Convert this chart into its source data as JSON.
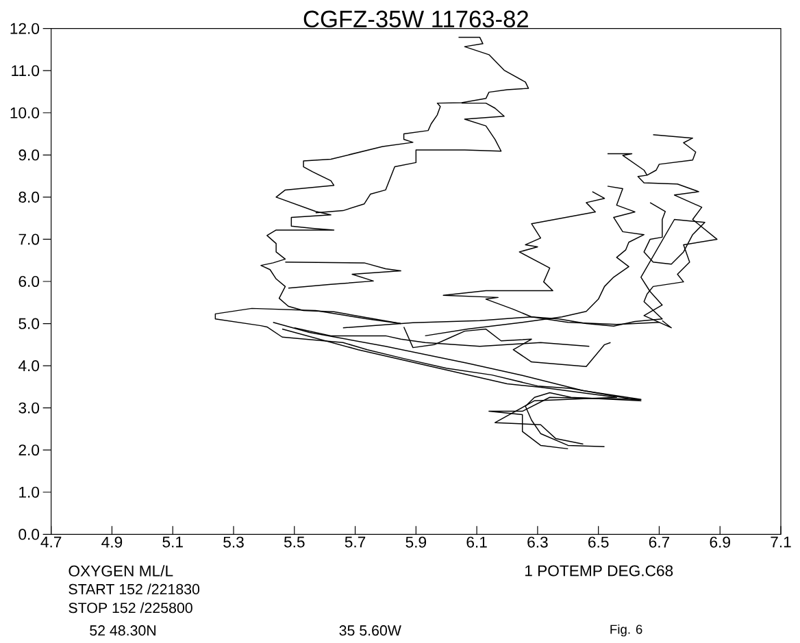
{
  "chart_data": {
    "type": "line",
    "title": "CGFZ-35W 11763-82",
    "xlabel": "OXYGEN ML/L",
    "annotations": [
      "1 POTEMP DEG.C68",
      "START 152 /221830",
      "STOP 152 /225800",
      "52 48.30N",
      "35 5.60W",
      "Fig. 6"
    ],
    "xlim": [
      4.7,
      7.1
    ],
    "ylim": [
      0,
      12
    ],
    "xticks": [
      4.7,
      4.9,
      5.1,
      5.3,
      5.5,
      5.7,
      5.9,
      6.1,
      6.3,
      6.5,
      6.7,
      6.9,
      7.1
    ],
    "yticks": [
      {
        "value": 0,
        "label": "0.0"
      },
      {
        "value": 1,
        "label": "1.0"
      },
      {
        "value": 2,
        "label": "2.0"
      },
      {
        "value": 3,
        "label": "3.0"
      },
      {
        "value": 4,
        "label": "4.0"
      },
      {
        "value": 5,
        "label": "5.0"
      },
      {
        "value": 6,
        "label": "6.0"
      },
      {
        "value": 7,
        "label": "7.0"
      },
      {
        "value": 8,
        "label": "8.0"
      },
      {
        "value": 9,
        "label": "9.0"
      },
      {
        "value": 10,
        "label": "10.0"
      },
      {
        "value": 11,
        "label": "11.0"
      },
      {
        "value": 12,
        "label": "12.0"
      }
    ],
    "line_style": "solid",
    "series": [
      {
        "color": "#000000",
        "x": [
          6.04,
          6.11,
          6.12,
          6.06,
          6.14,
          6.19,
          6.26,
          6.27,
          6.2,
          6.14,
          6.13,
          6.05,
          5.97,
          5.98,
          5.97,
          5.95,
          5.94,
          5.86,
          5.86,
          5.89,
          5.79,
          5.62,
          5.53,
          5.53,
          5.56,
          5.62,
          5.63,
          5.47,
          5.44,
          5.57,
          5.62,
          5.49,
          5.49,
          5.56,
          5.63,
          5.44,
          5.41,
          5.44,
          5.44,
          5.47,
          5.43,
          5.39,
          5.42,
          5.44,
          5.47,
          5.45,
          5.48,
          5.53,
          5.63,
          5.85
        ],
        "values": [
          11.79,
          11.79,
          11.64,
          11.57,
          11.38,
          11.01,
          10.73,
          10.58,
          10.55,
          10.49,
          10.34,
          10.24,
          10.23,
          10.15,
          9.95,
          9.74,
          9.58,
          9.5,
          9.37,
          9.3,
          9.2,
          8.9,
          8.86,
          8.72,
          8.6,
          8.39,
          8.28,
          8.17,
          8.0,
          7.66,
          7.58,
          7.52,
          7.31,
          7.26,
          7.22,
          7.22,
          7.09,
          6.9,
          6.7,
          6.53,
          6.44,
          6.38,
          6.28,
          6.06,
          5.88,
          5.6,
          5.41,
          5.31,
          5.28,
          5.0
        ]
      },
      {
        "color": "#000000",
        "x": [
          5.85,
          5.74,
          5.57,
          5.36,
          5.24,
          5.24,
          5.39,
          5.41,
          5.46,
          5.66,
          5.74,
          5.86,
          6.0,
          6.15,
          6.3,
          6.41,
          6.64,
          6.41,
          6.34,
          6.29,
          6.26,
          6.28,
          6.31,
          6.4,
          6.52
        ],
        "values": [
          5.0,
          5.11,
          5.31,
          5.36,
          5.23,
          5.11,
          4.95,
          4.92,
          4.68,
          4.55,
          4.38,
          4.17,
          3.94,
          3.78,
          3.52,
          3.46,
          3.17,
          3.25,
          3.36,
          3.25,
          3.04,
          2.71,
          2.39,
          2.11,
          2.08
        ]
      },
      {
        "color": "#000000",
        "x": [
          5.43,
          5.55,
          5.8,
          6.07,
          6.25,
          6.45,
          6.64,
          6.34,
          6.25,
          6.14,
          6.25,
          6.25,
          6.31,
          6.4
        ],
        "values": [
          5.03,
          4.79,
          4.46,
          4.06,
          3.77,
          3.41,
          3.2,
          3.25,
          2.92,
          2.92,
          2.84,
          2.44,
          2.11,
          2.03
        ]
      },
      {
        "color": "#000000",
        "x": [
          5.46,
          5.71,
          6.0,
          6.2,
          6.31,
          6.56,
          6.29,
          6.22,
          6.16,
          6.31,
          6.36,
          6.45
        ],
        "values": [
          4.87,
          4.38,
          3.9,
          3.57,
          3.49,
          3.25,
          3.17,
          2.89,
          2.65,
          2.6,
          2.27,
          2.14
        ]
      },
      {
        "color": "#000000",
        "x": [
          6.05,
          6.13,
          6.16,
          6.19,
          6.06,
          6.13,
          6.16,
          6.18,
          6.06,
          5.9,
          5.9,
          5.83,
          5.8,
          5.75,
          5.73,
          5.66,
          5.57
        ],
        "values": [
          10.23,
          10.23,
          10.11,
          9.92,
          9.85,
          9.69,
          9.37,
          9.09,
          9.12,
          9.12,
          8.82,
          8.72,
          8.17,
          8.07,
          7.84,
          7.68,
          7.63
        ]
      },
      {
        "color": "#000000",
        "x": [
          5.47,
          5.73,
          5.8,
          5.85,
          5.69,
          5.76,
          5.62,
          5.48
        ],
        "values": [
          6.46,
          6.44,
          6.3,
          6.25,
          6.17,
          6.01,
          5.93,
          5.84
        ]
      },
      {
        "color": "#000000",
        "x": [
          6.68,
          6.81,
          6.78,
          6.82,
          6.81,
          6.7,
          6.69,
          6.66,
          6.63,
          6.65,
          6.76,
          6.83,
          6.75,
          6.84,
          6.81,
          6.89,
          6.78,
          6.8,
          6.76,
          6.78,
          6.68,
          6.66,
          6.65,
          6.71,
          6.62,
          6.55,
          6.46,
          6.37,
          6.28,
          6.11,
          5.89,
          5.66
        ],
        "values": [
          9.48,
          9.4,
          9.29,
          9.07,
          8.88,
          8.78,
          8.64,
          8.52,
          8.49,
          8.34,
          8.31,
          8.13,
          8.05,
          7.76,
          7.47,
          7.0,
          6.87,
          6.46,
          6.17,
          5.99,
          5.88,
          5.7,
          5.52,
          5.11,
          5.05,
          4.94,
          5.0,
          5.11,
          5.16,
          5.07,
          5.02,
          4.9
        ]
      },
      {
        "color": "#000000",
        "x": [
          6.53,
          6.61,
          6.58,
          6.65,
          6.66
        ],
        "values": [
          9.03,
          9.03,
          8.99,
          8.64,
          8.52
        ]
      },
      {
        "color": "#000000",
        "x": [
          6.48,
          6.52,
          6.46,
          6.49,
          6.28,
          6.31,
          6.26,
          6.3,
          6.24,
          6.34,
          6.32,
          6.35,
          6.21,
          6.13,
          5.99,
          6.17,
          6.13,
          6.22,
          6.28,
          6.4,
          6.56,
          6.7
        ],
        "values": [
          8.13,
          7.97,
          7.87,
          7.65,
          7.37,
          7.03,
          6.87,
          6.82,
          6.7,
          6.32,
          5.99,
          5.78,
          5.78,
          5.78,
          5.67,
          5.62,
          5.58,
          5.34,
          5.16,
          5.03,
          4.98,
          5.03
        ]
      },
      {
        "color": "#000000",
        "x": [
          6.53,
          6.58,
          6.56,
          6.62,
          6.55,
          6.58,
          6.65,
          6.6,
          6.59,
          6.56,
          6.6,
          6.55,
          6.52,
          6.5,
          6.46,
          6.38,
          6.25,
          6.07,
          5.93
        ],
        "values": [
          8.26,
          8.2,
          7.81,
          7.65,
          7.52,
          7.18,
          7.11,
          6.93,
          6.75,
          6.57,
          6.35,
          6.1,
          5.88,
          5.58,
          5.29,
          5.16,
          5.03,
          4.87,
          4.71
        ]
      },
      {
        "color": "#000000",
        "x": [
          6.67,
          6.72,
          6.71,
          6.71,
          6.67,
          6.65,
          6.68,
          6.74,
          6.78,
          6.81,
          6.85,
          6.75,
          6.64,
          6.67,
          6.71,
          6.65,
          6.74,
          6.71
        ],
        "values": [
          7.87,
          7.66,
          7.47,
          7.05,
          7.0,
          6.7,
          6.46,
          6.41,
          6.7,
          7.11,
          7.4,
          7.47,
          6.1,
          5.76,
          5.44,
          5.19,
          4.9,
          5.07
        ]
      },
      {
        "color": "#000000",
        "x": [
          5.86,
          5.89,
          5.96,
          6.01,
          6.06,
          6.13,
          6.18,
          6.28,
          6.22,
          6.28,
          6.46,
          6.52,
          6.54
        ],
        "values": [
          4.92,
          4.43,
          4.5,
          4.66,
          4.82,
          4.87,
          4.59,
          4.63,
          4.38,
          4.09,
          3.98,
          4.5,
          4.55
        ]
      },
      {
        "color": "#000000",
        "x": [
          5.5,
          5.62,
          5.8,
          5.85,
          5.93,
          6.11,
          6.31,
          6.47
        ],
        "values": [
          4.9,
          4.71,
          4.71,
          4.63,
          4.55,
          4.46,
          4.55,
          4.46
        ]
      }
    ]
  }
}
